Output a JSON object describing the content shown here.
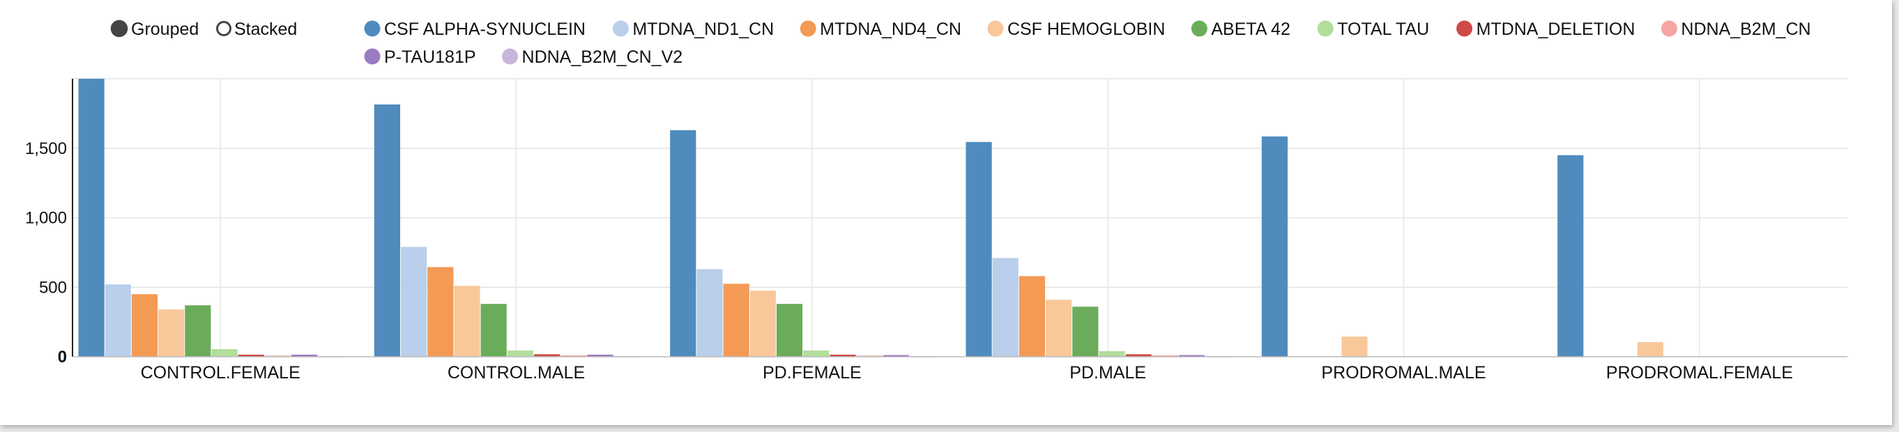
{
  "controls": {
    "grouped_label": "Grouped",
    "stacked_label": "Stacked",
    "selected": "Grouped"
  },
  "chart_data": {
    "type": "bar",
    "mode": "grouped",
    "categories": [
      "CONTROL.FEMALE",
      "CONTROL.MALE",
      "PD.FEMALE",
      "PD.MALE",
      "PRODROMAL.MALE",
      "PRODROMAL.FEMALE"
    ],
    "ylim": [
      0,
      2000
    ],
    "yticks": [
      0,
      500,
      1000,
      1500
    ],
    "ytick_labels": [
      "0",
      "500",
      "1,000",
      "1,500"
    ],
    "grid": true,
    "legend_position": "top",
    "series": [
      {
        "name": "CSF ALPHA-SYNUCLEIN",
        "color": "#4f8bbd",
        "values": [
          2010,
          1815,
          1630,
          1545,
          1585,
          1450
        ]
      },
      {
        "name": "MTDNA_ND1_CN",
        "color": "#b9cfeb",
        "values": [
          520,
          790,
          630,
          710,
          0,
          0
        ]
      },
      {
        "name": "MTDNA_ND4_CN",
        "color": "#f39a55",
        "values": [
          450,
          645,
          525,
          580,
          0,
          0
        ]
      },
      {
        "name": "CSF HEMOGLOBIN",
        "color": "#f8c89a",
        "values": [
          340,
          510,
          475,
          410,
          145,
          105
        ]
      },
      {
        "name": "ABETA 42",
        "color": "#6aac5a",
        "values": [
          370,
          380,
          380,
          360,
          0,
          0
        ]
      },
      {
        "name": "TOTAL TAU",
        "color": "#b2dd9b",
        "values": [
          55,
          45,
          45,
          40,
          0,
          0
        ]
      },
      {
        "name": "MTDNA_DELETION",
        "color": "#cf4a46",
        "values": [
          15,
          18,
          15,
          18,
          0,
          0
        ]
      },
      {
        "name": "NDNA_B2M_CN",
        "color": "#f4a6a4",
        "values": [
          8,
          10,
          8,
          10,
          0,
          0
        ]
      },
      {
        "name": "P-TAU181P",
        "color": "#9b7ac4",
        "values": [
          15,
          15,
          12,
          12,
          0,
          0
        ]
      },
      {
        "name": "NDNA_B2M_CN_V2",
        "color": "#c8b5d9",
        "values": [
          5,
          5,
          5,
          5,
          0,
          0
        ]
      }
    ]
  }
}
